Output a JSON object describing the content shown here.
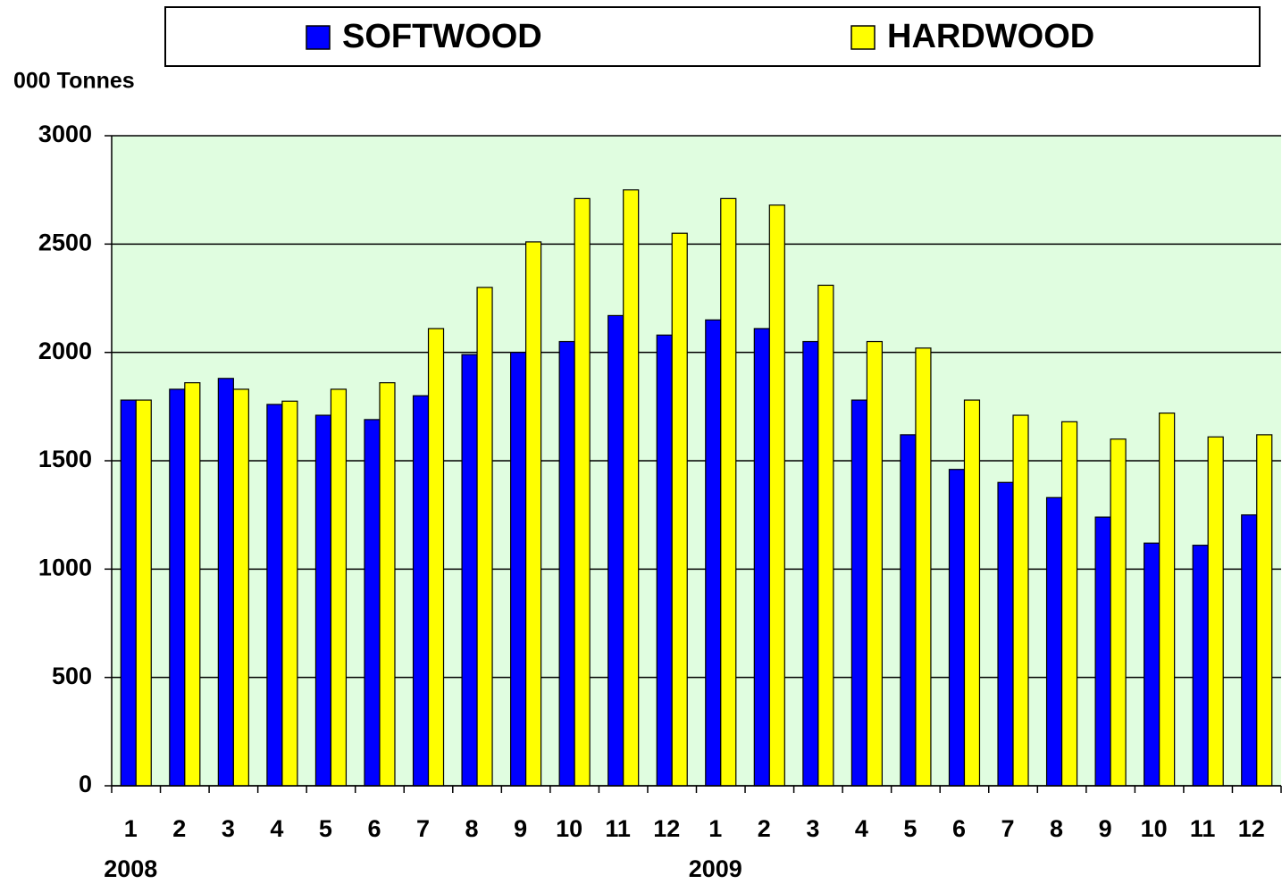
{
  "chart_data": {
    "type": "bar",
    "y_label": "000 Tonnes",
    "categories": [
      "1",
      "2",
      "3",
      "4",
      "5",
      "6",
      "7",
      "8",
      "9",
      "10",
      "11",
      "12",
      "1",
      "2",
      "3",
      "4",
      "5",
      "6",
      "7",
      "8",
      "9",
      "10",
      "11",
      "12"
    ],
    "x_group_labels": [
      "2008",
      "2009"
    ],
    "series": [
      {
        "name": "SOFTWOOD",
        "color": "#0000ff",
        "values": [
          1780,
          1830,
          1880,
          1760,
          1710,
          1690,
          1800,
          1990,
          2000,
          2050,
          2170,
          2080,
          2150,
          2110,
          2050,
          1780,
          1620,
          1460,
          1400,
          1330,
          1240,
          1120,
          1110,
          1250
        ]
      },
      {
        "name": "HARDWOOD",
        "color": "#ffff00",
        "values": [
          1780,
          1860,
          1830,
          1775,
          1830,
          1860,
          2110,
          2300,
          2510,
          2710,
          2750,
          2550,
          2710,
          2680,
          2310,
          2050,
          2020,
          1780,
          1710,
          1680,
          1600,
          1720,
          1610,
          1620
        ]
      }
    ],
    "ylim": [
      0,
      3000
    ],
    "yticks": [
      0,
      500,
      1000,
      1500,
      2000,
      2500,
      3000
    ],
    "grid": true,
    "plot_background": "#e0fde0",
    "legend": "top"
  }
}
